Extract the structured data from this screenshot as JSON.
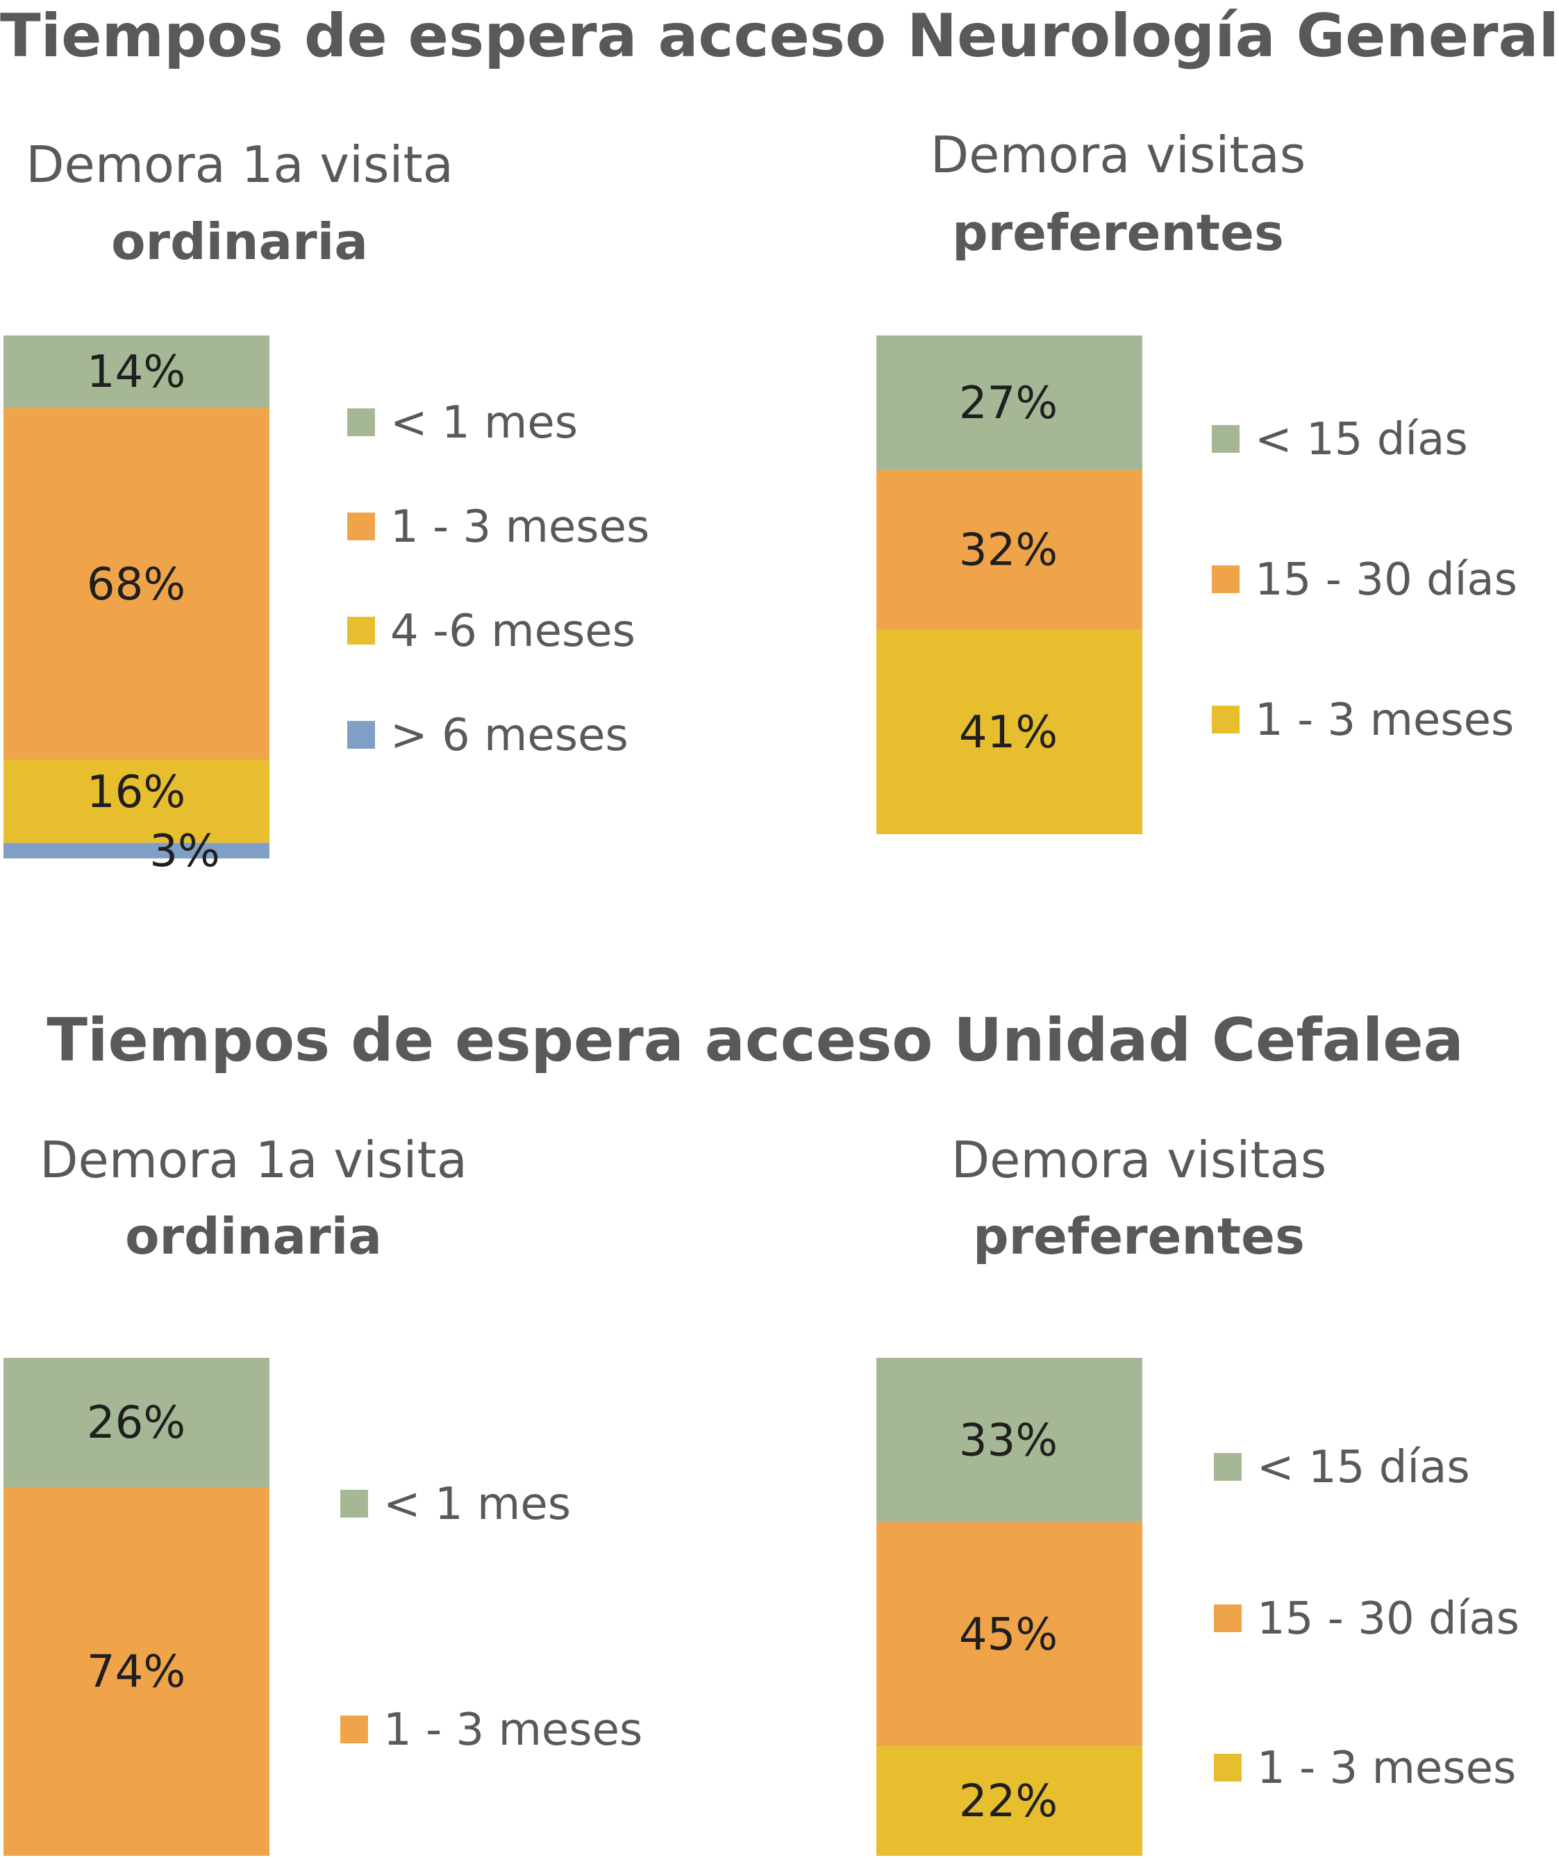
{
  "panels": {
    "top": {
      "title": "Tiempos de espera acceso Neurología General"
    },
    "bottom": {
      "title": "Tiempos de espera acceso Unidad Cefalea"
    }
  },
  "colors": {
    "lt1mes": "#a6b795",
    "green": "#a6b795",
    "orange": "#f0a44a",
    "yellow": "#e6be2e",
    "blue": "#7f9fc6",
    "text": "#595959"
  },
  "chart_data": [
    {
      "type": "bar",
      "stacked": true,
      "panel": "Tiempos de espera acceso Neurología General",
      "title_line1": "Demora 1a visita",
      "title_line2": "ordinaria",
      "series": [
        {
          "name": "< 1 mes",
          "value": 14,
          "label": "14%",
          "color": "green"
        },
        {
          "name": "1 - 3 meses",
          "value": 68,
          "label": "68%",
          "color": "orange"
        },
        {
          "name": "4 -6 meses",
          "value": 16,
          "label": "16%",
          "color": "yellow"
        },
        {
          "name": "> 6 meses",
          "value": 3,
          "label": "3%",
          "color": "blue"
        }
      ],
      "ylim": [
        0,
        101
      ]
    },
    {
      "type": "bar",
      "stacked": true,
      "panel": "Tiempos de espera acceso Neurología General",
      "title_line1": "Demora visitas",
      "title_line2": "preferentes",
      "series": [
        {
          "name": "< 15 días",
          "value": 27,
          "label": "27%",
          "color": "green"
        },
        {
          "name": "15 - 30 días",
          "value": 32,
          "label": "32%",
          "color": "orange"
        },
        {
          "name": "1 - 3 meses",
          "value": 41,
          "label": "41%",
          "color": "yellow"
        }
      ],
      "ylim": [
        0,
        100
      ]
    },
    {
      "type": "bar",
      "stacked": true,
      "panel": "Tiempos de espera acceso Unidad Cefalea",
      "title_line1": "Demora 1a visita",
      "title_line2": "ordinaria",
      "series": [
        {
          "name": "< 1 mes",
          "value": 26,
          "label": "26%",
          "color": "green"
        },
        {
          "name": "1 - 3 meses",
          "value": 74,
          "label": "74%",
          "color": "orange"
        }
      ],
      "ylim": [
        0,
        100
      ]
    },
    {
      "type": "bar",
      "stacked": true,
      "panel": "Tiempos de espera acceso Unidad Cefalea",
      "title_line1": "Demora visitas",
      "title_line2": "preferentes",
      "series": [
        {
          "name": "< 15 días",
          "value": 33,
          "label": "33%",
          "color": "green"
        },
        {
          "name": "15 - 30 días",
          "value": 45,
          "label": "45%",
          "color": "orange"
        },
        {
          "name": "1 - 3 meses",
          "value": 22,
          "label": "22%",
          "color": "yellow"
        }
      ],
      "ylim": [
        0,
        100
      ]
    }
  ]
}
